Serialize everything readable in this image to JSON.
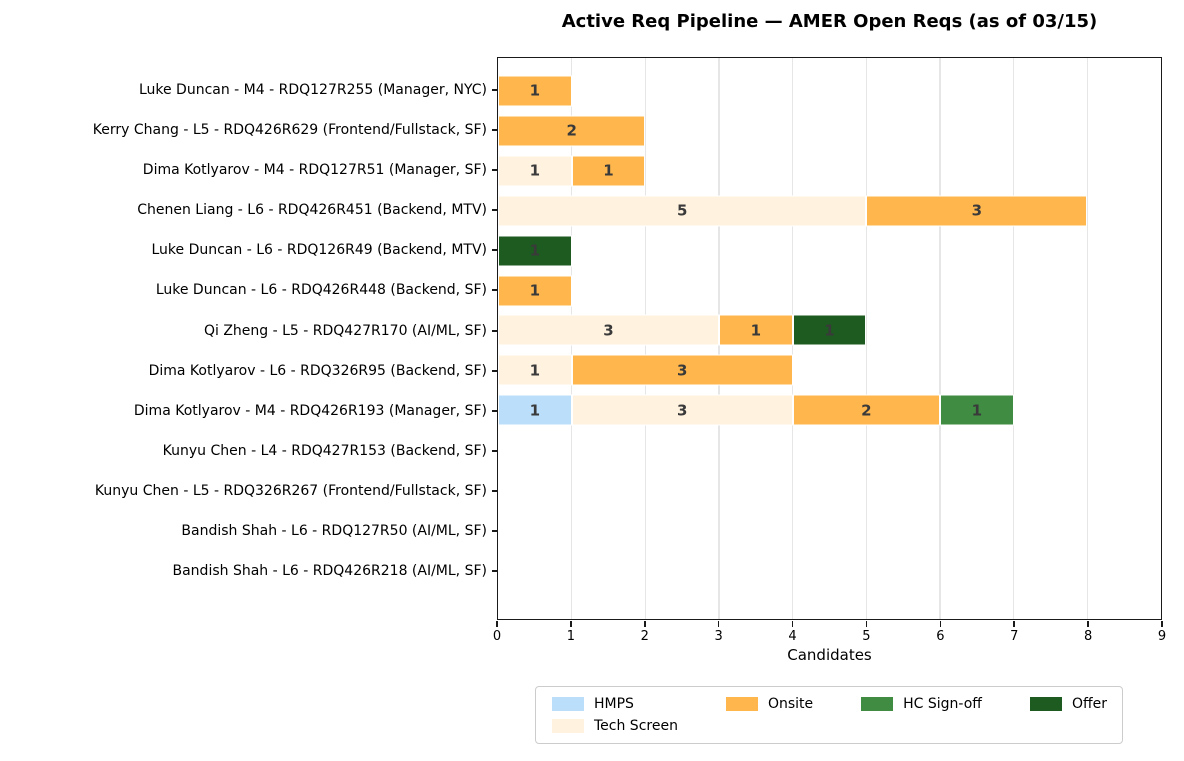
{
  "title": "Active Req Pipeline — AMER Open Reqs (as of 03/15)",
  "chart_data": {
    "type": "bar",
    "orientation": "horizontal",
    "stacked": true,
    "title": "Active Req Pipeline — AMER Open Reqs (as of 03/15)",
    "xlabel": "Candidates",
    "ylabel": "",
    "xlim": [
      0,
      9
    ],
    "xticks": [
      0,
      1,
      2,
      3,
      4,
      5,
      6,
      7,
      8,
      9
    ],
    "grid": "vertical",
    "bar_value_labels_shown": true,
    "categories": [
      "Luke Duncan - M4 - RDQ127R255 (Manager, NYC)",
      "Kerry Chang - L5 - RDQ426R629 (Frontend/Fullstack, SF)",
      "Dima Kotlyarov - M4 - RDQ127R51 (Manager, SF)",
      "Chenen Liang - L6 - RDQ426R451 (Backend, MTV)",
      "Luke Duncan - L6 - RDQ126R49 (Backend, MTV)",
      "Luke Duncan - L6 - RDQ426R448 (Backend, SF)",
      "Qi Zheng - L5 - RDQ427R170 (AI/ML, SF)",
      "Dima Kotlyarov - L6 - RDQ326R95 (Backend, SF)",
      "Dima Kotlyarov - M4 - RDQ426R193 (Manager, SF)",
      "Kunyu Chen - L4 - RDQ427R153 (Backend, SF)",
      "Kunyu Chen - L5 - RDQ326R267 (Frontend/Fullstack, SF)",
      "Bandish Shah - L6 - RDQ127R50 (AI/ML, SF)",
      "Bandish Shah - L6 - RDQ426R218 (AI/ML, SF)"
    ],
    "series": [
      {
        "name": "HMPS",
        "color": "#BBDEFB",
        "values": [
          0,
          0,
          0,
          0,
          0,
          0,
          0,
          0,
          1,
          0,
          0,
          0,
          0
        ]
      },
      {
        "name": "Tech Screen",
        "color": "#FFF3E0",
        "values": [
          0,
          0,
          1,
          5,
          0,
          0,
          3,
          1,
          3,
          0,
          0,
          0,
          0
        ]
      },
      {
        "name": "Onsite",
        "color": "#FFB74D",
        "values": [
          1,
          2,
          1,
          3,
          0,
          1,
          1,
          3,
          2,
          0,
          0,
          0,
          0
        ]
      },
      {
        "name": "HC Sign-off",
        "color": "#3F8C42",
        "values": [
          0,
          0,
          0,
          0,
          0,
          0,
          0,
          0,
          1,
          0,
          0,
          0,
          0
        ]
      },
      {
        "name": "Offer",
        "color": "#1E5B20",
        "values": [
          0,
          0,
          0,
          0,
          1,
          0,
          1,
          0,
          0,
          0,
          0,
          0,
          0
        ]
      }
    ],
    "legend_position": "bottom"
  },
  "legend": {
    "items": [
      {
        "label": "HMPS",
        "color": "#BBDEFB"
      },
      {
        "label": "Onsite",
        "color": "#FFB74D"
      },
      {
        "label": "HC Sign-off",
        "color": "#3F8C42"
      },
      {
        "label": "Offer",
        "color": "#1E5B20"
      },
      {
        "label": "Tech Screen",
        "color": "#FFF3E0"
      }
    ]
  },
  "style": {
    "gridline_color": "#e6e6e6",
    "spine_color": "#1a1a1a",
    "segment_label_color": "#3a3a3a",
    "background": "#ffffff"
  }
}
